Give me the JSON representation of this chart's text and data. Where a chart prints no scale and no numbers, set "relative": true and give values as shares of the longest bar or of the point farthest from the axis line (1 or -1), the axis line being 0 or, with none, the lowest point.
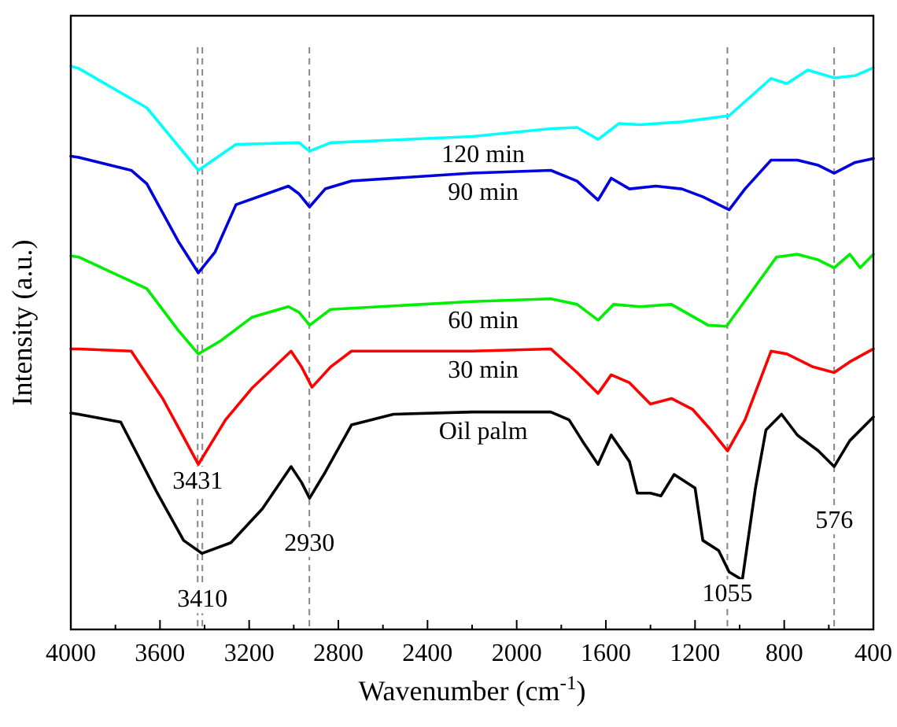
{
  "chart_data": {
    "type": "line",
    "relative": true,
    "xlabel": "Wavenumber (cm$^{-1}$)",
    "ylabel": "Intensity (a.u.)",
    "tick_labels": "x",
    "grid": false,
    "marker": "none",
    "line_style": "solid",
    "xlim": [
      4000,
      400
    ],
    "xticks": [
      4000,
      {
        "value": 3800,
        "label": null
      },
      3600,
      {
        "value": 3400,
        "label": null
      },
      3200,
      {
        "value": 3000,
        "label": null
      },
      2800,
      {
        "value": 2600,
        "label": null
      },
      2400,
      {
        "value": 2200,
        "label": null
      },
      2000,
      {
        "value": 1800,
        "label": null
      },
      1600,
      {
        "value": 1400,
        "label": null
      },
      1200,
      {
        "value": 1000,
        "label": null
      },
      800,
      {
        "value": 600,
        "label": null
      },
      400
    ],
    "series": [
      {
        "name": "120 min",
        "color": "#00ffff",
        "x": [
          4000,
          3965,
          3659,
          3428,
          3259,
          2976,
          2929,
          2835,
          2200,
          1847,
          1729,
          1635,
          1541,
          1447,
          1259,
          1047,
          859,
          788,
          694,
          576,
          482,
          400
        ],
        "values": [
          1.0,
          0.996,
          0.926,
          0.815,
          0.861,
          0.864,
          0.849,
          0.864,
          0.875,
          0.889,
          0.891,
          0.87,
          0.898,
          0.896,
          0.901,
          0.912,
          0.978,
          0.969,
          0.993,
          0.979,
          0.983,
          0.997
        ]
      },
      {
        "name": "90 min",
        "color": "#0000dd",
        "x": [
          4000,
          3965,
          3729,
          3659,
          3518,
          3428,
          3353,
          3259,
          3024,
          2976,
          2929,
          2859,
          2741,
          2200,
          1847,
          1729,
          1635,
          1576,
          1494,
          1376,
          1259,
          1165,
          1047,
          976,
          859,
          741,
          647,
          576,
          482,
          400
        ],
        "values": [
          0.84,
          0.838,
          0.815,
          0.791,
          0.689,
          0.633,
          0.67,
          0.754,
          0.787,
          0.773,
          0.75,
          0.782,
          0.796,
          0.81,
          0.815,
          0.796,
          0.762,
          0.801,
          0.782,
          0.787,
          0.782,
          0.768,
          0.745,
          0.782,
          0.833,
          0.833,
          0.824,
          0.81,
          0.829,
          0.836
        ]
      },
      {
        "name": "60 min",
        "color": "#00ee00",
        "x": [
          4000,
          3965,
          3659,
          3518,
          3428,
          3329,
          3188,
          3024,
          2976,
          2929,
          2835,
          2200,
          1847,
          1729,
          1635,
          1565,
          1447,
          1306,
          1141,
          1059,
          953,
          835,
          741,
          647,
          576,
          506,
          459,
          400
        ],
        "values": [
          0.663,
          0.661,
          0.605,
          0.531,
          0.489,
          0.512,
          0.554,
          0.573,
          0.563,
          0.54,
          0.568,
          0.582,
          0.587,
          0.577,
          0.549,
          0.577,
          0.573,
          0.577,
          0.54,
          0.538,
          0.596,
          0.661,
          0.666,
          0.656,
          0.642,
          0.666,
          0.642,
          0.666
        ]
      },
      {
        "name": "30 min",
        "color": "#ff0000",
        "x": [
          4000,
          3965,
          3729,
          3588,
          3428,
          3306,
          3188,
          3012,
          2965,
          2918,
          2835,
          2741,
          2200,
          1847,
          1729,
          1635,
          1576,
          1494,
          1400,
          1306,
          1212,
          1129,
          1054,
          976,
          859,
          788,
          671,
          576,
          506,
          400
        ],
        "values": [
          0.498,
          0.498,
          0.494,
          0.41,
          0.293,
          0.372,
          0.428,
          0.494,
          0.466,
          0.43,
          0.466,
          0.494,
          0.494,
          0.498,
          0.456,
          0.419,
          0.452,
          0.438,
          0.4,
          0.41,
          0.391,
          0.354,
          0.317,
          0.372,
          0.494,
          0.489,
          0.466,
          0.456,
          0.475,
          0.498
        ]
      },
      {
        "name": "Oil palm",
        "color": "#000000",
        "x": [
          4000,
          3965,
          3776,
          3612,
          3494,
          3412,
          3282,
          3141,
          3012,
          2965,
          2929,
          2859,
          2741,
          2553,
          2200,
          1847,
          1765,
          1706,
          1635,
          1576,
          1494,
          1459,
          1400,
          1353,
          1294,
          1200,
          1165,
          1094,
          1047,
          988,
          929,
          882,
          812,
          741,
          647,
          576,
          506,
          400
        ],
        "values": [
          0.384,
          0.382,
          0.368,
          0.242,
          0.158,
          0.135,
          0.154,
          0.214,
          0.289,
          0.261,
          0.233,
          0.279,
          0.363,
          0.382,
          0.386,
          0.386,
          0.372,
          0.335,
          0.293,
          0.345,
          0.298,
          0.242,
          0.242,
          0.237,
          0.275,
          0.251,
          0.158,
          0.14,
          0.102,
          0.088,
          0.251,
          0.354,
          0.382,
          0.345,
          0.317,
          0.289,
          0.335,
          0.377
        ]
      }
    ],
    "ref_lines": [
      {
        "axis": "x",
        "value": 3431,
        "line_style": "dashed",
        "color": "#888888"
      },
      {
        "axis": "x",
        "value": 2930,
        "line_style": "dashed",
        "color": "#888888"
      },
      {
        "axis": "x",
        "value": 3410,
        "line_style": "dashed",
        "color": "#888888"
      },
      {
        "axis": "x",
        "value": 1055,
        "line_style": "dashed",
        "color": "#888888"
      },
      {
        "axis": "x",
        "value": 576,
        "line_style": "dashed",
        "color": "#888888"
      }
    ],
    "annotations": [
      {
        "text": "3431",
        "x": 3431,
        "y": 0.25
      },
      {
        "text": "2930",
        "x": 2930,
        "y": 0.14
      },
      {
        "text": "3410",
        "x": 3410,
        "y": 0.04
      },
      {
        "text": "1055",
        "x": 1055,
        "y": 0.05
      },
      {
        "text": "576",
        "x": 576,
        "y": 0.18
      }
    ]
  }
}
